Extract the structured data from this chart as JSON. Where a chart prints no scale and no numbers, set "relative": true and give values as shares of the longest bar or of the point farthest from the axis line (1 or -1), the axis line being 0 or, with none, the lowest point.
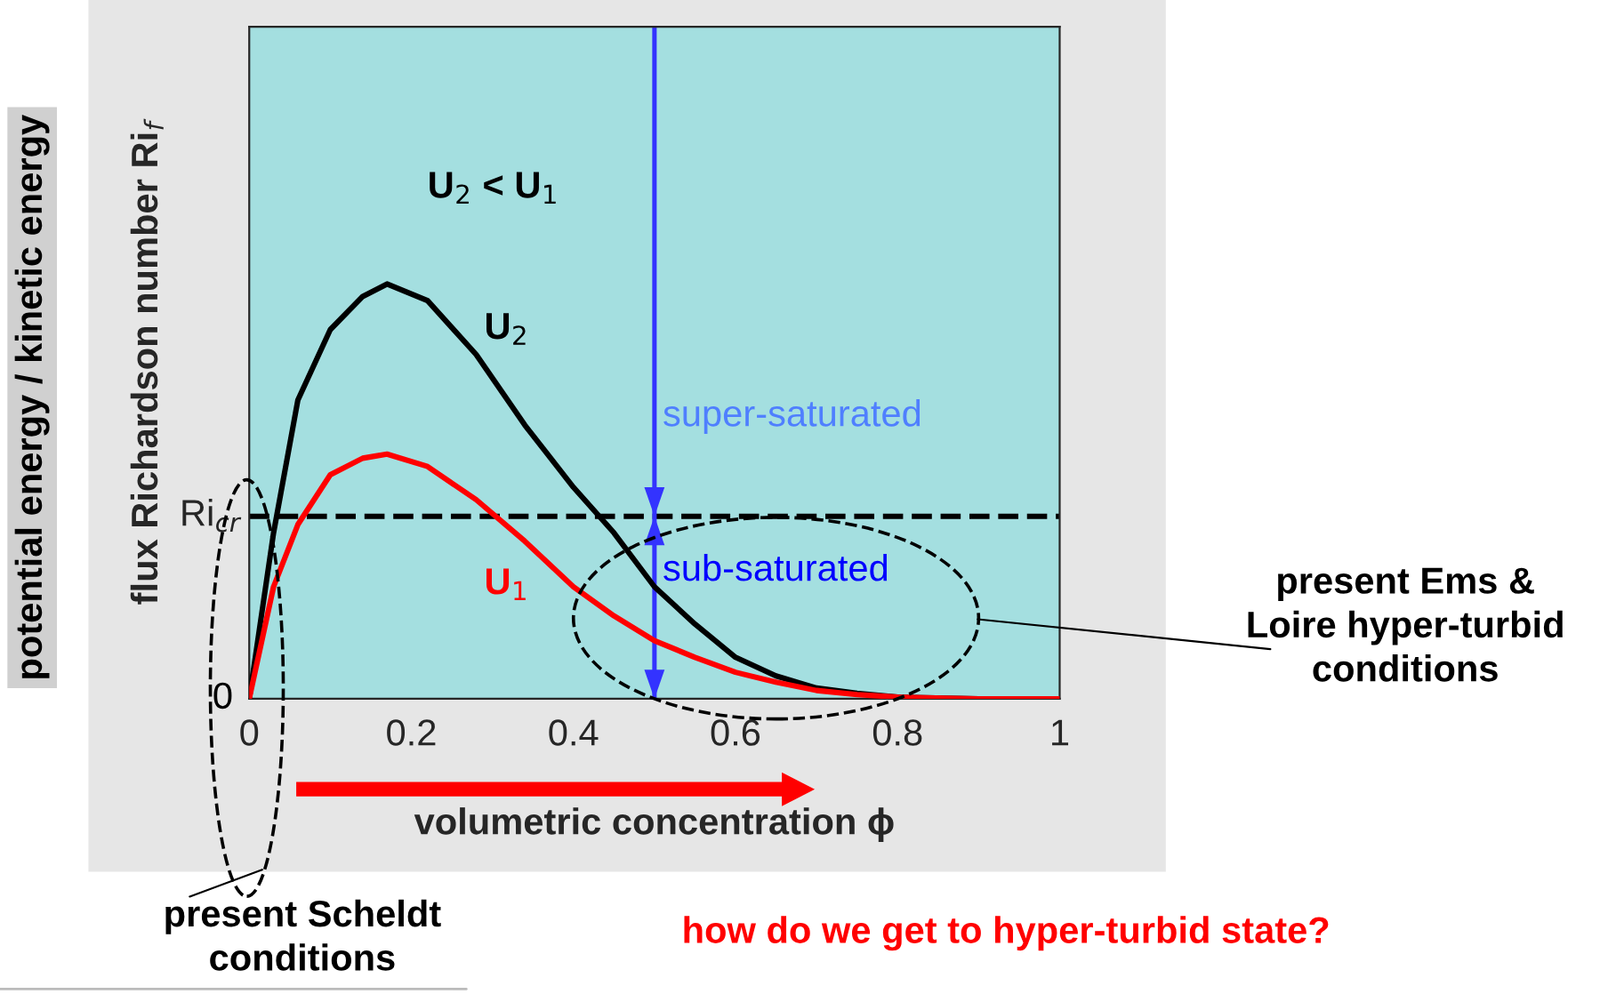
{
  "chart_data": {
    "type": "line",
    "relative": true,
    "xlabel": "volumetric concentration ϕ",
    "ylabel": "flux Richardson number Ri$_{f}$",
    "xlim": [
      0,
      1
    ],
    "xticks": [
      0,
      0.2,
      0.4,
      0.6,
      0.8,
      1
    ],
    "grid": false,
    "legend": false,
    "marker": "none",
    "line_style": "solid",
    "x": [
      0,
      0.03,
      0.06,
      0.1,
      0.14,
      0.17,
      0.22,
      0.28,
      0.34,
      0.4,
      0.45,
      0.5,
      0.55,
      0.6,
      0.65,
      0.7,
      0.75,
      0.8,
      0.9,
      1
    ],
    "series": [
      {
        "name": "U$_{2}$",
        "color": "#000000",
        "values": [
          0,
          0.4,
          0.72,
          0.89,
          0.97,
          1,
          0.96,
          0.83,
          0.66,
          0.51,
          0.4,
          0.27,
          0.18,
          0.1,
          0.055,
          0.026,
          0.013,
          0.004,
          0,
          0
        ]
      },
      {
        "name": "U$_{1}$",
        "color": "#ff0000",
        "values": [
          0,
          0.27,
          0.42,
          0.54,
          0.58,
          0.59,
          0.56,
          0.48,
          0.38,
          0.27,
          0.2,
          0.14,
          0.1,
          0.064,
          0.04,
          0.02,
          0.01,
          0.004,
          0,
          0
        ]
      }
    ],
    "ref_lines": [
      {
        "axis": "y",
        "value": 0.44,
        "label": "Ri$_{cr}$",
        "color": "#000000",
        "line_style": "dashed"
      },
      {
        "axis": "x",
        "value": 0.5,
        "label": null,
        "color": "#3333ff",
        "line_style": "solid"
      }
    ],
    "annotations": [
      "U$_{2}$ < U$_{1}$",
      "super-saturated",
      "sub-saturated",
      "present Ems &\nLoire hyper-turbid\nconditions",
      "present Scheldt\nconditions",
      "how do we get to hyper-turbid state?",
      "potential energy / kinetic energy",
      "0"
    ]
  }
}
